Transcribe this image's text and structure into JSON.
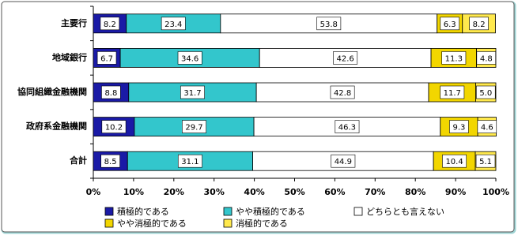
{
  "chart_data": {
    "type": "stacked-bar-horizontal",
    "categories": [
      "主要行",
      "地域銀行",
      "協同組織金融機関",
      "政府系金融機関",
      "合計"
    ],
    "series": [
      {
        "name": "積極的である",
        "color": "#1a1aa6",
        "values": [
          8.2,
          6.7,
          8.8,
          10.2,
          8.5
        ]
      },
      {
        "name": "やや積極的である",
        "color": "#33c6cc",
        "values": [
          23.4,
          34.6,
          31.7,
          29.7,
          31.1
        ]
      },
      {
        "name": "どちらとも言えない",
        "color": "#ffffff",
        "values": [
          53.8,
          42.6,
          42.8,
          46.3,
          44.9
        ]
      },
      {
        "name": "やや消極的である",
        "color": "#f2d600",
        "values": [
          6.3,
          11.3,
          11.7,
          9.3,
          10.4
        ]
      },
      {
        "name": "消極的である",
        "color": "#ffe94d",
        "values": [
          8.2,
          4.8,
          5.0,
          4.6,
          5.1
        ],
        "value_labels": [
          "8.2",
          "4.8",
          "5.0",
          "4.6",
          "5.1"
        ]
      }
    ],
    "xlim": [
      0,
      100
    ],
    "xticks": [
      {
        "value": 0,
        "label": "0%"
      },
      {
        "value": 10,
        "label": "10%"
      },
      {
        "value": 20,
        "label": "20%"
      },
      {
        "value": 30,
        "label": "30%"
      },
      {
        "value": 40,
        "label": "40%"
      },
      {
        "value": 50,
        "label": "50%"
      },
      {
        "value": 60,
        "label": "60%"
      },
      {
        "value": 70,
        "label": "70%"
      },
      {
        "value": 80,
        "label": "80%"
      },
      {
        "value": 90,
        "label": "90%"
      },
      {
        "value": 100,
        "label": "100%"
      }
    ]
  }
}
